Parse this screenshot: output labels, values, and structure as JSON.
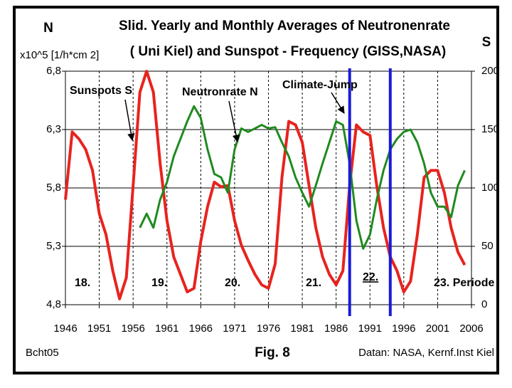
{
  "chart_data": {
    "type": "line",
    "title": "Slid. Yearly and Monthly Averages of Neutronenrate",
    "subtitle": "( Uni Kiel) and  Sunspot - Frequency (GISS,NASA)",
    "y_label": "N",
    "y_unit": "x10^5 [1/h*cm 2]",
    "y2_label": "S",
    "figure_label": "Fig. 8",
    "left_note": "Bcht05",
    "source": "Datan: NASA, Kernf.Inst Kiel",
    "annotations": [
      "Sunspots S",
      "Neutronrate N",
      "Climate-Jump"
    ],
    "cycle_labels": [
      "18.",
      "19.",
      "20.",
      "21.",
      "22.",
      "23. Periode"
    ],
    "markers": [
      1988,
      1994
    ],
    "marker_color": "#1a1adb",
    "x": [
      1946,
      1947,
      1948,
      1949,
      1950,
      1951,
      1952,
      1953,
      1954,
      1955,
      1956,
      1957,
      1958,
      1959,
      1960,
      1961,
      1962,
      1963,
      1964,
      1965,
      1966,
      1967,
      1968,
      1969,
      1970,
      1971,
      1972,
      1973,
      1974,
      1975,
      1976,
      1977,
      1978,
      1979,
      1980,
      1981,
      1982,
      1983,
      1984,
      1985,
      1986,
      1987,
      1988,
      1989,
      1990,
      1991,
      1992,
      1993,
      1994,
      1995,
      1996,
      1997,
      1998,
      1999,
      2000,
      2001,
      2002,
      2003,
      2004,
      2005
    ],
    "series": [
      {
        "name": "Sunspots S",
        "color": "#e8231e",
        "axis": "y2",
        "values": [
          90,
          148,
          142,
          133,
          115,
          78,
          60,
          29,
          5,
          23,
          102,
          182,
          200,
          182,
          121,
          72,
          41,
          26,
          11,
          14,
          54,
          84,
          105,
          101,
          102,
          72,
          51,
          38,
          26,
          17,
          14,
          35,
          109,
          157,
          154,
          139,
          102,
          66,
          41,
          26,
          17,
          29,
          102,
          154,
          148,
          145,
          102,
          66,
          41,
          29,
          11,
          20,
          60,
          109,
          115,
          115,
          96,
          66,
          45,
          34
        ]
      },
      {
        "name": "Neutronrate N",
        "color": "#1f8a1f",
        "values": [
          null,
          null,
          null,
          null,
          null,
          null,
          null,
          null,
          null,
          null,
          null,
          5.46,
          5.58,
          5.46,
          5.7,
          5.85,
          6.07,
          6.22,
          6.37,
          6.5,
          6.4,
          6.13,
          5.92,
          5.89,
          5.76,
          6.13,
          6.31,
          6.28,
          6.31,
          6.34,
          6.31,
          6.32,
          6.19,
          6.07,
          5.89,
          5.76,
          5.64,
          5.82,
          6.01,
          6.19,
          6.37,
          6.34,
          6.01,
          5.52,
          5.28,
          5.4,
          5.7,
          5.95,
          6.13,
          6.22,
          6.28,
          6.3,
          6.19,
          6.01,
          5.76,
          5.64,
          5.64,
          5.55,
          5.82,
          5.95
        ]
      }
    ],
    "xlim": [
      1946,
      2006
    ],
    "xticks": [
      1946,
      1951,
      1956,
      1961,
      1966,
      1971,
      1976,
      1981,
      1986,
      1991,
      1996,
      2001,
      2006
    ],
    "ylim": [
      4.8,
      6.8
    ],
    "yticks": [
      {
        "value": 4.8,
        "label": "4,8"
      },
      {
        "value": 5.3,
        "label": "5,3"
      },
      {
        "value": 5.8,
        "label": "5,8"
      },
      {
        "value": 6.3,
        "label": "6,3"
      },
      {
        "value": 6.8,
        "label": "6,8"
      }
    ],
    "y2lim": [
      0,
      200
    ],
    "y2ticks": [
      0,
      50,
      100,
      150,
      200
    ],
    "grid": true
  }
}
